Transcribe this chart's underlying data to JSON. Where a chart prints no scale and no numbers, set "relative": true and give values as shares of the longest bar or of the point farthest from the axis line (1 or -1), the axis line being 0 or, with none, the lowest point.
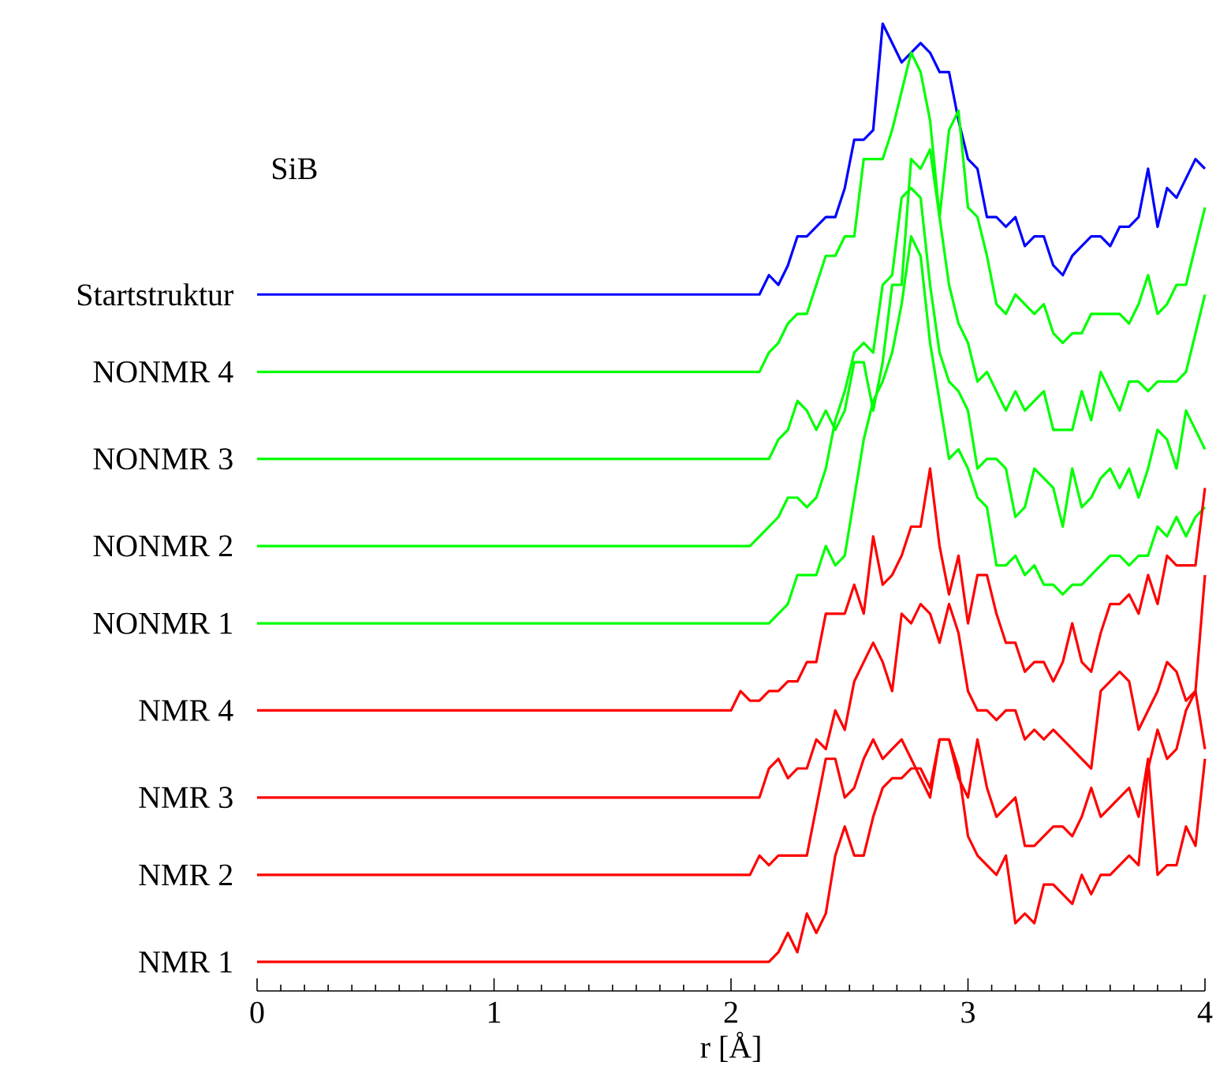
{
  "chart_data": {
    "type": "line",
    "title": "SiB",
    "xlabel": "r [Å]",
    "relative": true,
    "xlim": [
      0,
      4
    ],
    "xticks": [
      0,
      1,
      2,
      3,
      4
    ],
    "x": [
      0,
      2.0,
      2.04,
      2.08,
      2.12,
      2.16,
      2.2,
      2.24,
      2.28,
      2.32,
      2.36,
      2.4,
      2.44,
      2.48,
      2.52,
      2.56,
      2.6,
      2.64,
      2.68,
      2.72,
      2.76,
      2.8,
      2.84,
      2.88,
      2.92,
      2.96,
      3.0,
      3.04,
      3.08,
      3.12,
      3.16,
      3.2,
      3.24,
      3.28,
      3.32,
      3.36,
      3.4,
      3.44,
      3.48,
      3.52,
      3.56,
      3.6,
      3.64,
      3.68,
      3.72,
      3.76,
      3.8,
      3.84,
      3.88,
      3.92,
      3.96,
      4.0
    ],
    "series": [
      {
        "name": "Startstruktur",
        "color": "#0000ff",
        "values": [
          0.72,
          0.72,
          0.72,
          0.72,
          0.72,
          0.74,
          0.73,
          0.75,
          0.78,
          0.78,
          0.79,
          0.8,
          0.8,
          0.83,
          0.88,
          0.88,
          0.89,
          1.0,
          0.98,
          0.96,
          0.97,
          0.98,
          0.97,
          0.95,
          0.95,
          0.9,
          0.86,
          0.85,
          0.8,
          0.8,
          0.79,
          0.8,
          0.77,
          0.78,
          0.78,
          0.75,
          0.74,
          0.76,
          0.77,
          0.78,
          0.78,
          0.77,
          0.79,
          0.79,
          0.8,
          0.85,
          0.79,
          0.83,
          0.82,
          0.84,
          0.86,
          0.85
        ]
      },
      {
        "name": "NONMR 4",
        "color": "#00ff00",
        "values": [
          0.64,
          0.64,
          0.64,
          0.64,
          0.64,
          0.66,
          0.67,
          0.69,
          0.7,
          0.7,
          0.73,
          0.76,
          0.76,
          0.78,
          0.78,
          0.86,
          0.86,
          0.86,
          0.89,
          0.93,
          0.97,
          0.95,
          0.9,
          0.8,
          0.89,
          0.91,
          0.81,
          0.8,
          0.76,
          0.71,
          0.7,
          0.72,
          0.71,
          0.7,
          0.71,
          0.68,
          0.67,
          0.68,
          0.68,
          0.7,
          0.7,
          0.7,
          0.7,
          0.69,
          0.71,
          0.74,
          0.7,
          0.71,
          0.73,
          0.73,
          0.77,
          0.81
        ]
      },
      {
        "name": "NONMR 3",
        "color": "#00ff00",
        "values": [
          0.55,
          0.55,
          0.55,
          0.55,
          0.55,
          0.55,
          0.57,
          0.58,
          0.61,
          0.6,
          0.58,
          0.6,
          0.58,
          0.6,
          0.65,
          0.65,
          0.6,
          0.65,
          0.73,
          0.73,
          0.86,
          0.85,
          0.87,
          0.8,
          0.73,
          0.69,
          0.67,
          0.63,
          0.64,
          0.62,
          0.6,
          0.62,
          0.6,
          0.61,
          0.62,
          0.58,
          0.58,
          0.58,
          0.62,
          0.59,
          0.64,
          0.62,
          0.6,
          0.63,
          0.63,
          0.62,
          0.63,
          0.63,
          0.63,
          0.64,
          0.68,
          0.72
        ]
      },
      {
        "name": "NONMR 2",
        "color": "#00ff00",
        "values": [
          0.46,
          0.46,
          0.46,
          0.46,
          0.47,
          0.48,
          0.49,
          0.51,
          0.51,
          0.5,
          0.51,
          0.54,
          0.59,
          0.62,
          0.66,
          0.67,
          0.66,
          0.73,
          0.74,
          0.82,
          0.83,
          0.82,
          0.73,
          0.66,
          0.63,
          0.62,
          0.6,
          0.54,
          0.55,
          0.55,
          0.54,
          0.49,
          0.5,
          0.54,
          0.53,
          0.52,
          0.48,
          0.54,
          0.5,
          0.51,
          0.53,
          0.54,
          0.52,
          0.54,
          0.51,
          0.54,
          0.58,
          0.57,
          0.54,
          0.6,
          0.58,
          0.56
        ]
      },
      {
        "name": "NONMR 1",
        "color": "#00ff00",
        "values": [
          0.38,
          0.38,
          0.38,
          0.38,
          0.38,
          0.38,
          0.39,
          0.4,
          0.43,
          0.43,
          0.43,
          0.46,
          0.44,
          0.45,
          0.51,
          0.57,
          0.61,
          0.63,
          0.66,
          0.71,
          0.78,
          0.76,
          0.67,
          0.61,
          0.55,
          0.56,
          0.54,
          0.51,
          0.5,
          0.44,
          0.44,
          0.45,
          0.43,
          0.44,
          0.42,
          0.42,
          0.41,
          0.42,
          0.42,
          0.43,
          0.44,
          0.45,
          0.45,
          0.44,
          0.45,
          0.45,
          0.48,
          0.47,
          0.49,
          0.47,
          0.49,
          0.5
        ]
      },
      {
        "name": "NMR 4",
        "color": "#ff0000",
        "values": [
          0.29,
          0.29,
          0.31,
          0.3,
          0.3,
          0.31,
          0.31,
          0.32,
          0.32,
          0.34,
          0.34,
          0.39,
          0.39,
          0.39,
          0.42,
          0.39,
          0.47,
          0.42,
          0.43,
          0.45,
          0.48,
          0.48,
          0.54,
          0.46,
          0.41,
          0.45,
          0.38,
          0.43,
          0.43,
          0.39,
          0.36,
          0.36,
          0.33,
          0.34,
          0.34,
          0.32,
          0.34,
          0.38,
          0.34,
          0.33,
          0.37,
          0.4,
          0.4,
          0.41,
          0.39,
          0.43,
          0.4,
          0.45,
          0.44,
          0.44,
          0.44,
          0.52
        ]
      },
      {
        "name": "NMR 3",
        "color": "#ff0000",
        "values": [
          0.2,
          0.2,
          0.2,
          0.2,
          0.2,
          0.23,
          0.24,
          0.22,
          0.23,
          0.23,
          0.26,
          0.25,
          0.29,
          0.27,
          0.32,
          0.34,
          0.36,
          0.34,
          0.31,
          0.39,
          0.38,
          0.4,
          0.39,
          0.36,
          0.4,
          0.37,
          0.31,
          0.29,
          0.29,
          0.28,
          0.29,
          0.29,
          0.26,
          0.27,
          0.26,
          0.27,
          0.26,
          0.25,
          0.24,
          0.23,
          0.31,
          0.32,
          0.33,
          0.32,
          0.27,
          0.29,
          0.31,
          0.34,
          0.33,
          0.3,
          0.31,
          0.43
        ]
      },
      {
        "name": "NMR 2",
        "color": "#ff0000",
        "values": [
          0.12,
          0.12,
          0.12,
          0.12,
          0.14,
          0.13,
          0.14,
          0.14,
          0.14,
          0.14,
          0.19,
          0.24,
          0.24,
          0.2,
          0.21,
          0.24,
          0.26,
          0.24,
          0.25,
          0.26,
          0.24,
          0.22,
          0.2,
          0.26,
          0.26,
          0.22,
          0.2,
          0.26,
          0.21,
          0.18,
          0.19,
          0.2,
          0.15,
          0.15,
          0.16,
          0.17,
          0.17,
          0.16,
          0.18,
          0.21,
          0.18,
          0.19,
          0.2,
          0.21,
          0.18,
          0.24,
          0.12,
          0.13,
          0.13,
          0.17,
          0.15,
          0.24
        ]
      },
      {
        "name": "NMR 1",
        "color": "#ff0000",
        "values": [
          0.03,
          0.03,
          0.03,
          0.03,
          0.03,
          0.03,
          0.04,
          0.06,
          0.04,
          0.08,
          0.06,
          0.08,
          0.14,
          0.17,
          0.14,
          0.14,
          0.18,
          0.21,
          0.22,
          0.22,
          0.23,
          0.23,
          0.21,
          0.26,
          0.26,
          0.23,
          0.16,
          0.14,
          0.13,
          0.12,
          0.14,
          0.07,
          0.08,
          0.07,
          0.11,
          0.11,
          0.1,
          0.09,
          0.12,
          0.1,
          0.12,
          0.12,
          0.13,
          0.14,
          0.13,
          0.23,
          0.27,
          0.24,
          0.25,
          0.29,
          0.31,
          0.25
        ]
      }
    ]
  }
}
